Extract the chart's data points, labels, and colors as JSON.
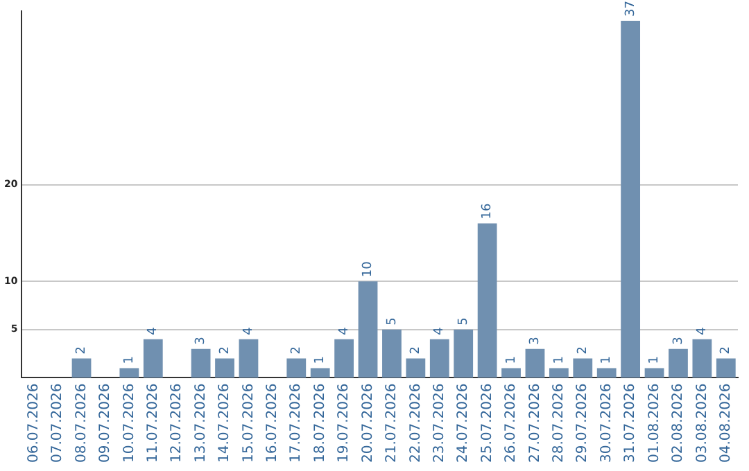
{
  "chart_data": {
    "type": "bar",
    "categories": [
      "06.07.2026",
      "07.07.2026",
      "08.07.2026",
      "09.07.2026",
      "10.07.2026",
      "11.07.2026",
      "12.07.2026",
      "13.07.2026",
      "14.07.2026",
      "15.07.2026",
      "16.07.2026",
      "17.07.2026",
      "18.07.2026",
      "19.07.2026",
      "20.07.2026",
      "21.07.2026",
      "22.07.2026",
      "23.07.2026",
      "24.07.2026",
      "25.07.2026",
      "26.07.2026",
      "27.07.2026",
      "28.07.2026",
      "29.07.2026",
      "30.07.2026",
      "31.07.2026",
      "01.08.2026",
      "02.08.2026",
      "03.08.2026",
      "04.08.2026"
    ],
    "values": [
      0,
      0,
      2,
      0,
      1,
      4,
      0,
      3,
      2,
      4,
      0,
      2,
      1,
      4,
      10,
      5,
      2,
      4,
      5,
      16,
      1,
      3,
      1,
      2,
      1,
      37,
      1,
      3,
      4,
      2
    ],
    "value_labels": [
      null,
      null,
      "2",
      null,
      "1",
      "4",
      null,
      "3",
      "2",
      "4",
      null,
      "2",
      "1",
      "4",
      "10",
      "5",
      "2",
      "4",
      "5",
      "16",
      "1",
      "3",
      "1",
      "2",
      "1",
      "37",
      "1",
      "3",
      "4",
      "2"
    ],
    "color": "#7090b0",
    "ylim": [
      0,
      38
    ],
    "yticks": [
      5,
      10,
      20
    ],
    "grid": "y",
    "legend": false
  }
}
